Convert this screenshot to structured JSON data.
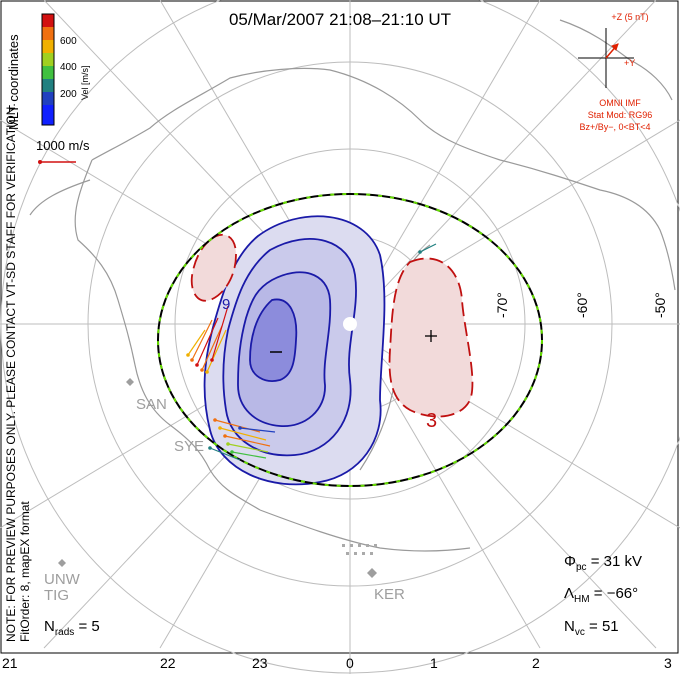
{
  "title": "05/Mar/2007 21:08–21:10 UT",
  "colorbar": {
    "title": "Vel [m/s]",
    "ticks": [
      "600",
      "400",
      "200"
    ],
    "colors": [
      "#d21010",
      "#f07010",
      "#f0b000",
      "#a0d020",
      "#40c040",
      "#208080",
      "#2040c0",
      "#1020ff"
    ]
  },
  "coords_label": "MLT coordinates",
  "reference_vector": "1000 m/s",
  "side_notes": {
    "preview": "NOTE: FOR PREVIEW PURPOSES ONLY. PLEASE CONTACT VT-SD STAFF FOR VERIFICATION.",
    "fit": "FitOrder: 8, mapEX format"
  },
  "imf": {
    "z_label": "+Z (5 nT)",
    "y_label": "+Y",
    "source": "OMNI IMF",
    "model": "Stat Mod: RG96",
    "condition": "Bz+/By−, 0<BT<4"
  },
  "latitude_labels": [
    "-70°",
    "-60°",
    "-50°"
  ],
  "mlt_labels": [
    "21",
    "22",
    "23",
    "0",
    "1",
    "2",
    "3"
  ],
  "stations": [
    "SAN",
    "SYE",
    "UNW",
    "TIG",
    "KER"
  ],
  "contour_labels": {
    "negative": "9",
    "positive": "3",
    "minus_sign": "−",
    "plus_sign": "+"
  },
  "stats": {
    "phi_pc_symbol": "Φ",
    "phi_pc_sub": "pc",
    "phi_pc_value": "= 31 kV",
    "lambda_hm_symbol": "Λ",
    "lambda_hm_sub": "HM",
    "lambda_hm_value": "= −66°",
    "n_vc_symbol": "N",
    "n_vc_sub": "vc",
    "n_vc_value": "= 51",
    "n_rads_symbol": "N",
    "n_rads_sub": "rads",
    "n_rads_value": "= 5"
  },
  "colors": {
    "negative_contour": "#1a1aa8",
    "positive_contour": "#c01010",
    "negative_fill_light": "#dcdcf0",
    "negative_fill_mid": "#b8b8e6",
    "negative_fill_dark": "#8c8cdc",
    "positive_fill": "#f2dada",
    "coast": "#9a9a9a",
    "grid": "#bdbdbd",
    "boundary_dash": "#66dd00"
  }
}
